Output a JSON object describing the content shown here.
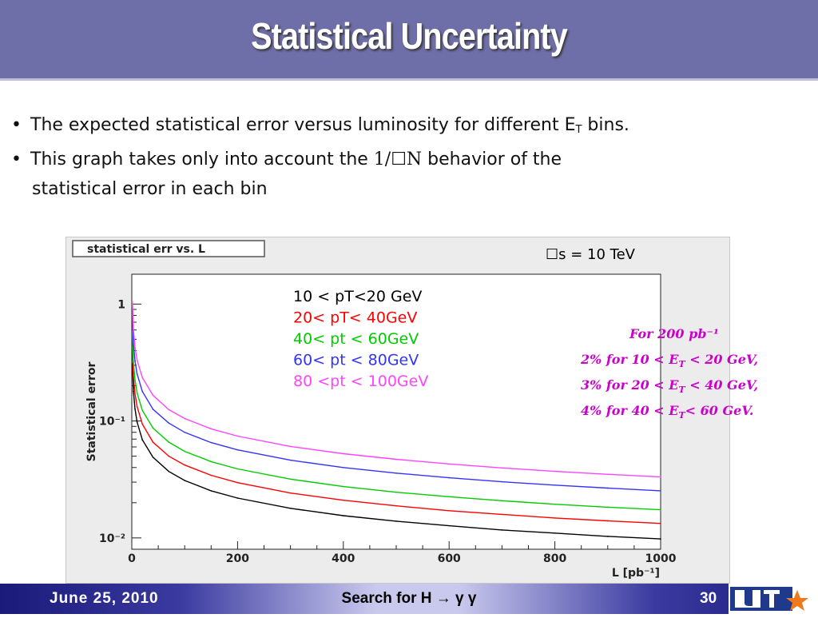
{
  "slide": {
    "title": "Statistical Uncertainty",
    "bullet1_a": "The expected statistical error versus luminosity for different E",
    "bullet1_sub": "T",
    "bullet1_b": " bins.",
    "bullet2_a": "This graph takes only into account the ",
    "bullet2_formula": "1/☐N",
    "bullet2_b": " behavior of the",
    "bullet2_c": "statistical error in each bin",
    "bullet_symbol": "•"
  },
  "annotation": {
    "energy": "☐s = 10 TeV",
    "line1": "For 200 pb⁻¹",
    "line2_a": "2% for 10 < E",
    "line2_sub": "T",
    "line2_b": " < 20 GeV,",
    "line3_a": "3% for 20 < E",
    "line3_sub": "T",
    "line3_b": " < 40 GeV,",
    "line4_a": "4%  for 40 < E",
    "line4_sub": "T",
    "line4_b": "< 60 GeV.",
    "color": "#cc00cc"
  },
  "footer": {
    "date": "June 25, 2010",
    "center": "Search for H → γ γ",
    "page": "30"
  },
  "chart_data": {
    "type": "line",
    "title": "statistical err vs. L",
    "xlabel": "L [pb⁻¹]",
    "ylabel": "Statistical error",
    "xlim": [
      0,
      1000
    ],
    "ylim": [
      0.008,
      1.8
    ],
    "y_scale": "log",
    "x_ticks": [
      0,
      200,
      400,
      600,
      800,
      1000
    ],
    "x_tick_labels": [
      "0",
      "200",
      "400",
      "600",
      "800",
      "1000"
    ],
    "y_ticks": [
      1,
      0.1,
      0.01
    ],
    "y_tick_labels": [
      "1",
      "10⁻¹",
      "10⁻²"
    ],
    "legend_placement": "top-center",
    "series": [
      {
        "name": "10 < pT<20 GeV",
        "color": "#000000",
        "x": [
          1,
          3,
          6,
          10,
          20,
          40,
          70,
          100,
          150,
          200,
          300,
          400,
          500,
          600,
          700,
          800,
          900,
          1000
        ],
        "values": [
          0.31,
          0.179,
          0.127,
          0.098,
          0.069,
          0.049,
          0.037,
          0.031,
          0.0253,
          0.0219,
          0.0179,
          0.0155,
          0.0139,
          0.0127,
          0.0117,
          0.011,
          0.0103,
          0.0098
        ]
      },
      {
        "name": "20< pT< 40GeV",
        "color": "#ff0000",
        "x": [
          1,
          3,
          6,
          10,
          20,
          40,
          70,
          100,
          150,
          200,
          300,
          400,
          500,
          600,
          700,
          800,
          900,
          1000
        ],
        "values": [
          0.42,
          0.242,
          0.171,
          0.133,
          0.094,
          0.066,
          0.05,
          0.042,
          0.0343,
          0.0297,
          0.0242,
          0.021,
          0.0188,
          0.0171,
          0.0159,
          0.0148,
          0.014,
          0.0133
        ]
      },
      {
        "name": "40< pt < 60GeV",
        "color": "#00cc00",
        "x": [
          1,
          3,
          6,
          10,
          20,
          40,
          70,
          100,
          150,
          200,
          300,
          400,
          500,
          600,
          700,
          800,
          900,
          1000
        ],
        "values": [
          0.55,
          0.318,
          0.225,
          0.174,
          0.123,
          0.087,
          0.066,
          0.055,
          0.0449,
          0.0389,
          0.0318,
          0.0275,
          0.0246,
          0.0225,
          0.0208,
          0.0194,
          0.0183,
          0.0174
        ]
      },
      {
        "name": "60< pt < 80GeV",
        "color": "#3333ff",
        "x": [
          1,
          3,
          6,
          10,
          20,
          40,
          70,
          100,
          150,
          200,
          300,
          400,
          500,
          600,
          700,
          800,
          900,
          1000
        ],
        "values": [
          0.8,
          0.462,
          0.327,
          0.253,
          0.179,
          0.126,
          0.096,
          0.08,
          0.0653,
          0.0566,
          0.0462,
          0.04,
          0.0358,
          0.0327,
          0.0302,
          0.0283,
          0.0267,
          0.0253
        ]
      },
      {
        "name": "80 <pt < 100GeV",
        "color": "#ff44ff",
        "x": [
          1,
          3,
          6,
          10,
          20,
          40,
          70,
          100,
          150,
          200,
          300,
          400,
          500,
          600,
          700,
          800,
          900,
          1000
        ],
        "values": [
          1.05,
          0.606,
          0.429,
          0.332,
          0.235,
          0.166,
          0.125,
          0.105,
          0.0857,
          0.0742,
          0.0606,
          0.0525,
          0.047,
          0.0429,
          0.0397,
          0.0371,
          0.035,
          0.0332
        ]
      }
    ]
  }
}
